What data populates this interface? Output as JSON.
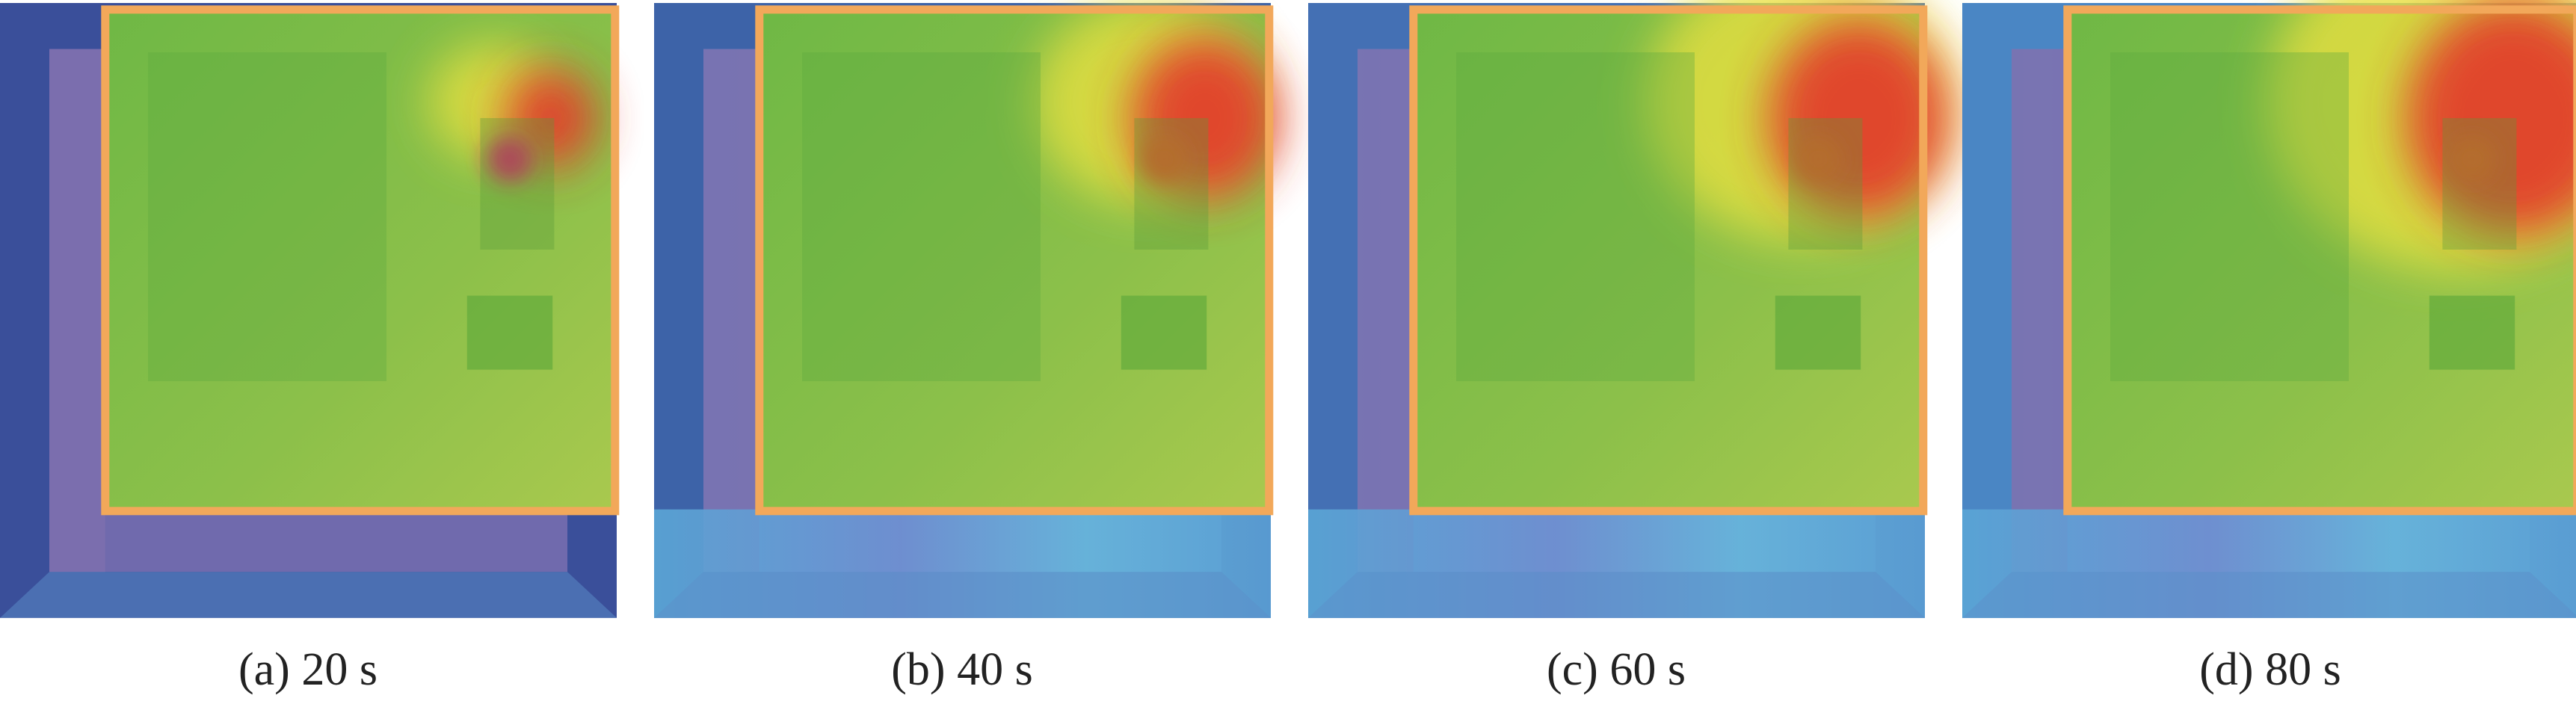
{
  "panels": [
    {
      "caption": "(a) 20 s"
    },
    {
      "caption": "(b) 40 s"
    },
    {
      "caption": "(c) 60 s"
    },
    {
      "caption": "(d) 80 s"
    }
  ]
}
